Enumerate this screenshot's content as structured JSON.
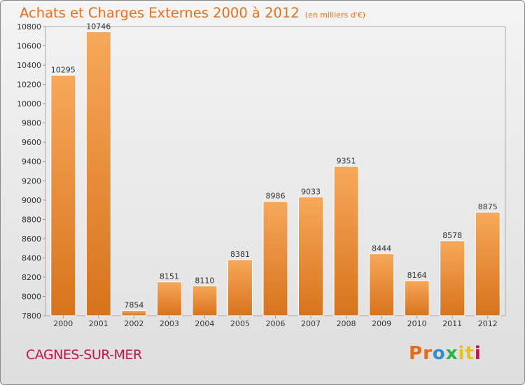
{
  "header": {
    "title": "Achats et Charges Externes 2000 à 2012",
    "unit": "(en milliers d'€)"
  },
  "footer": {
    "city": "CAGNES-SUR-MER",
    "logo": "Proxiti"
  },
  "colors": {
    "accent": "#e8701a",
    "bar_light": "#f7a85a",
    "bar_dark": "#d8731c",
    "city": "#c2144a",
    "logo_letters": [
      "#e86a1a",
      "#e86a1a",
      "#2a8fd6",
      "#2bb34a",
      "#e8c21a",
      "#e8c21a",
      "#c2144a"
    ]
  },
  "chart_data": {
    "type": "bar",
    "title": "Achats et Charges Externes 2000 à 2012",
    "subtitle": "(en milliers d'€)",
    "xlabel": "",
    "ylabel": "",
    "categories": [
      "2000",
      "2001",
      "2002",
      "2003",
      "2004",
      "2005",
      "2006",
      "2007",
      "2008",
      "2009",
      "2010",
      "2011",
      "2012"
    ],
    "values": [
      10295,
      10746,
      7854,
      8151,
      8110,
      8381,
      8986,
      9033,
      9351,
      8444,
      8164,
      8578,
      8875
    ],
    "ylim": [
      7800,
      10800
    ],
    "yticks": [
      7800,
      8000,
      8200,
      8400,
      8600,
      8800,
      9000,
      9200,
      9400,
      9600,
      9800,
      10000,
      10200,
      10400,
      10600,
      10800
    ],
    "grid": false,
    "data_labels": true
  }
}
